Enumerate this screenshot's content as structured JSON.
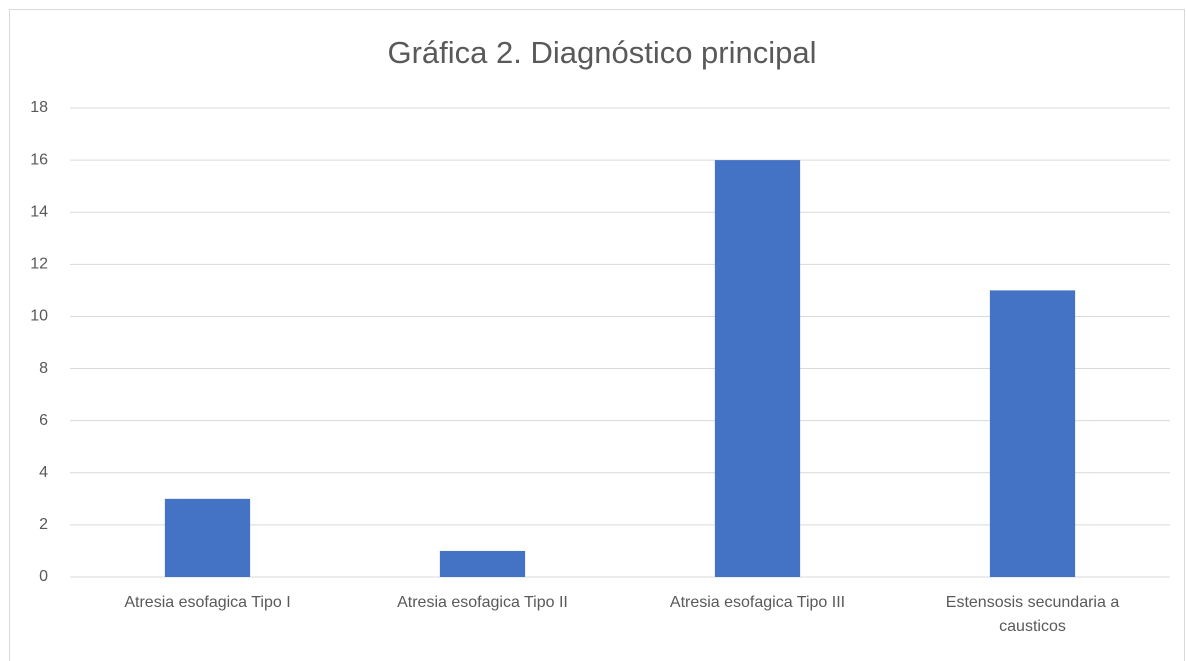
{
  "chart_data": {
    "type": "bar",
    "title": "Gráfica 2. Diagnóstico principal",
    "categories": [
      "Atresia esofagica Tipo I",
      "Atresia esofagica Tipo II",
      "Atresia esofagica Tipo III",
      "Estensosis secundaria a causticos"
    ],
    "values": [
      3,
      1,
      16,
      11
    ],
    "color": "#4472c4",
    "ylim": [
      0,
      18
    ],
    "yticks": [
      0,
      2,
      4,
      6,
      8,
      10,
      12,
      14,
      16,
      18
    ],
    "grid": true
  }
}
